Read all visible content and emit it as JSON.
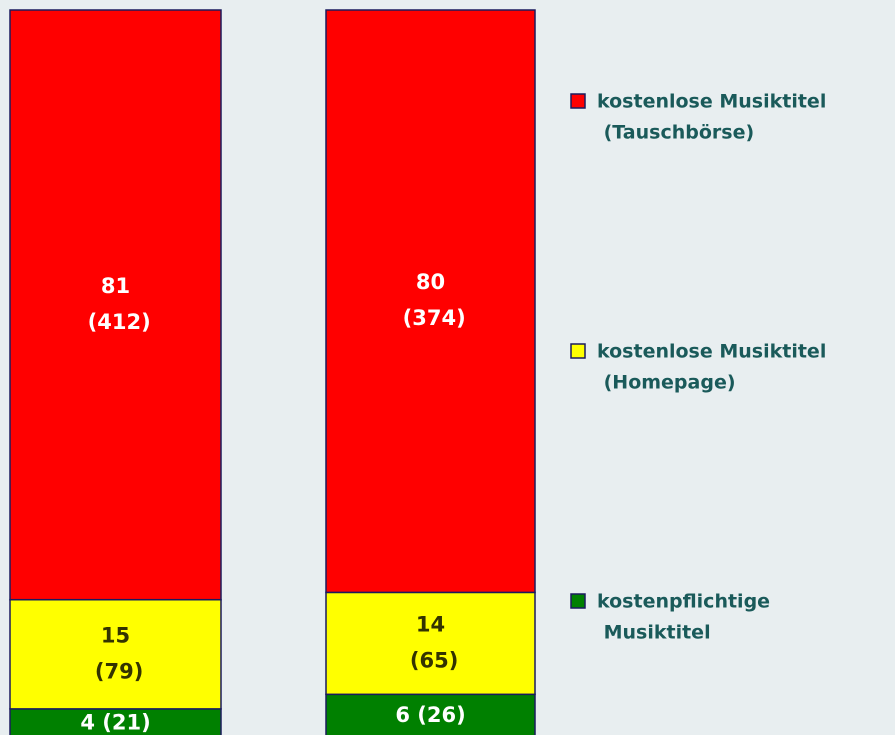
{
  "chart_data": {
    "type": "stacked_bar",
    "categories": [
      null,
      null
    ],
    "ylim": [
      0,
      100
    ],
    "series": [
      {
        "name": "kostenpflichtige Musiktitel",
        "color": "#008000",
        "label_color": "#ffffff",
        "values": [
          4,
          6
        ],
        "value_labels": [
          "4 (21)",
          "6 (26)"
        ]
      },
      {
        "name": "kostenlose Musiktitel (Homepage)",
        "color": "#ffff00",
        "label_color": "#333300",
        "values": [
          15,
          14
        ],
        "value_labels": [
          "15 (79)",
          "14 (65)"
        ]
      },
      {
        "name": "kostenlose Musiktitel (Tauschbörse)",
        "color": "#ff0000",
        "label_color": "#ffffff",
        "values": [
          81,
          80
        ],
        "value_labels": [
          "81 (412)",
          "80 (374)"
        ]
      }
    ]
  }
}
